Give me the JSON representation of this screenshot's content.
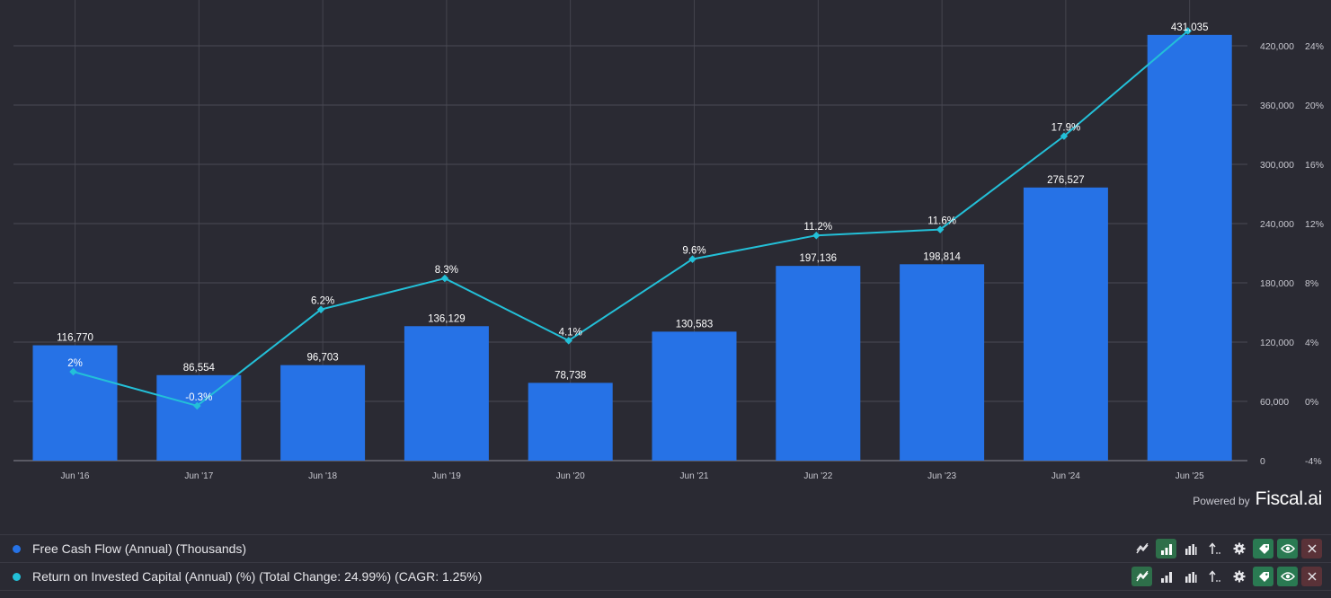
{
  "chart_data": {
    "type": "bar",
    "categories": [
      "Jun '16",
      "Jun '17",
      "Jun '18",
      "Jun '19",
      "Jun '20",
      "Jun '21",
      "Jun '22",
      "Jun '23",
      "Jun '24",
      "Jun '25"
    ],
    "series": [
      {
        "name": "Free Cash Flow (Annual) (Thousands)",
        "type": "bar",
        "axis": "left",
        "color": "#2672e6",
        "values": [
          116770,
          86554,
          96703,
          136129,
          78738,
          130583,
          197136,
          198814,
          276527,
          431035
        ],
        "labels": [
          "116,770",
          "86,554",
          "96,703",
          "136,129",
          "78,738",
          "130,583",
          "197,136",
          "198,814",
          "276,527",
          "431,035"
        ]
      },
      {
        "name": "Return on Invested Capital (Annual) (%)",
        "type": "line",
        "axis": "right",
        "color": "#23c0d8",
        "values": [
          2,
          -0.3,
          6.2,
          8.3,
          4.1,
          9.6,
          11.2,
          11.6,
          17.9,
          25
        ],
        "labels": [
          "2%",
          "-0.3%",
          "6.2%",
          "8.3%",
          "4.1%",
          "9.6%",
          "11.2%",
          "11.6%",
          "17.9%",
          ""
        ]
      }
    ],
    "y_left": {
      "ylim": [
        0,
        480000
      ],
      "ticks": [
        0,
        60000,
        120000,
        180000,
        240000,
        300000,
        360000,
        420000
      ],
      "tick_labels": [
        "0",
        "60,000",
        "120,000",
        "180,000",
        "240,000",
        "300,000",
        "360,000",
        "420,000"
      ]
    },
    "y_right": {
      "ylim": [
        -4,
        28
      ],
      "ticks": [
        -4,
        0,
        4,
        8,
        12,
        16,
        20,
        24
      ],
      "tick_labels": [
        "-4%",
        "0%",
        "4%",
        "8%",
        "12%",
        "16%",
        "20%",
        "24%"
      ]
    },
    "grid": true,
    "colors": {
      "background": "#2a2a33",
      "grid": "#4a4a54",
      "text": "#e6e6ea",
      "axis_text": "#c8c8d0"
    }
  },
  "branding": {
    "powered_by": "Powered by",
    "logo": "Fiscal.ai"
  },
  "legend": [
    {
      "label": "Free Cash Flow (Annual) (Thousands)",
      "color": "#2672e6"
    },
    {
      "label": "Return on Invested Capital (Annual) (%) (Total Change: 24.99%) (CAGR: 1.25%)",
      "color": "#23c0d8"
    }
  ],
  "toolbar_icons": [
    "line-chart-icon",
    "bar-chart-icon",
    "grouped-bar-icon",
    "sort-icon",
    "settings-icon",
    "tag-icon",
    "eye-icon",
    "close-icon"
  ]
}
